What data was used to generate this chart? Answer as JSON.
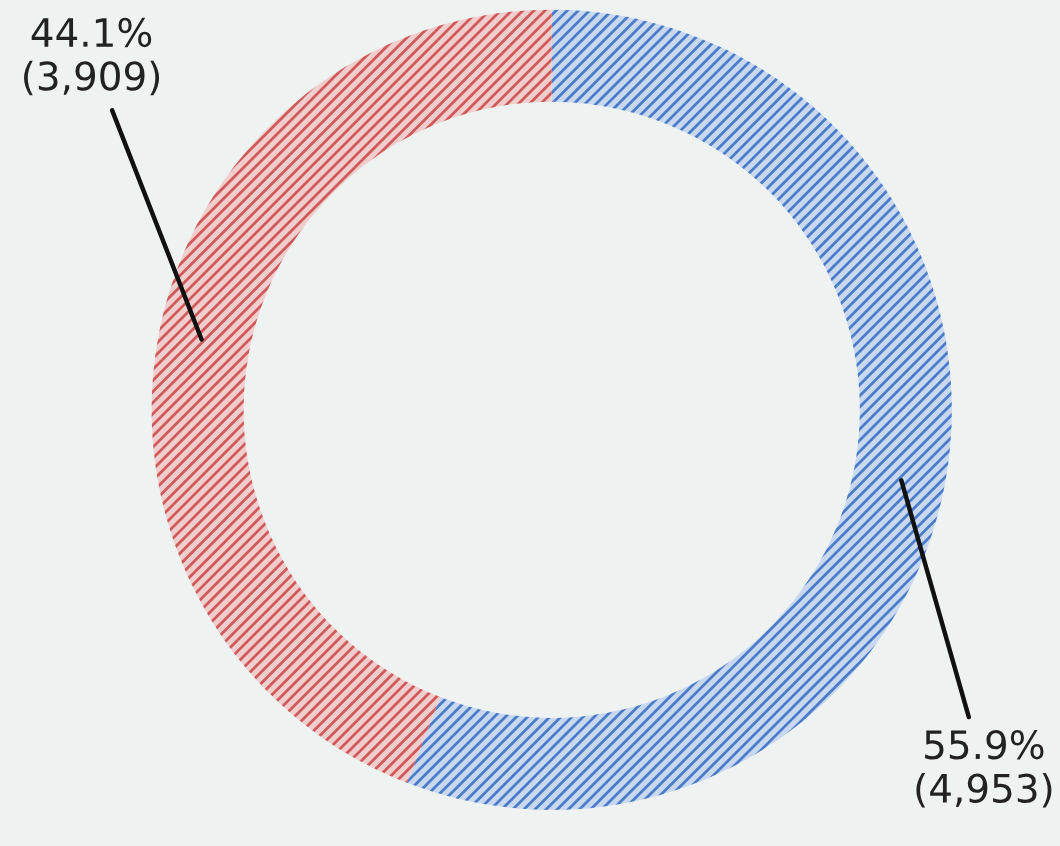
{
  "chart_data": {
    "type": "donut",
    "categories": [
      null,
      null
    ],
    "values": [
      4953,
      3909
    ],
    "value_labels": [
      "55.9%\n(4,953)",
      "44.1%\n(3,909)"
    ],
    "colors": [
      "#4a7cc9",
      "#d05a5a"
    ]
  }
}
